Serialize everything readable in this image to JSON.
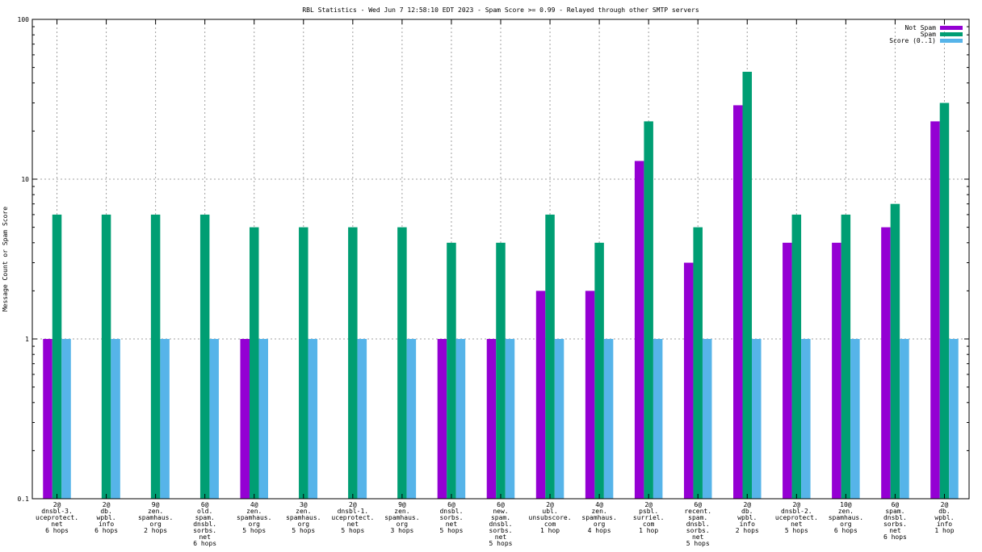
{
  "chart_data": {
    "type": "bar",
    "title": "RBL Statistics - Wed Jun  7 12:58:10 EDT 2023 - Spam Score >= 0.99 - Relayed through other SMTP servers",
    "ylabel": "Message Count or Spam Score",
    "xlabel": "",
    "yscale": "log",
    "ylim": [
      0.1,
      100
    ],
    "yticks": [
      "0.1",
      "1",
      "10",
      "100"
    ],
    "grid": true,
    "legend_position": "top-right",
    "categories": [
      [
        "2@",
        "dnsbl-3.",
        "uceprotect.",
        "net",
        "6 hops"
      ],
      [
        "2@",
        "db.",
        "wpbl.",
        "info",
        "6 hops"
      ],
      [
        "9@",
        "zen.",
        "spamhaus.",
        "org",
        "2 hops"
      ],
      [
        "6@",
        "old.",
        "spam.",
        "dnsbl.",
        "sorbs.",
        "net",
        "6 hops"
      ],
      [
        "4@",
        "zen.",
        "spamhaus.",
        "org",
        "5 hops"
      ],
      [
        "3@",
        "zen.",
        "spamhaus.",
        "org",
        "5 hops"
      ],
      [
        "2@",
        "dnsbl-1.",
        "uceprotect.",
        "net",
        "5 hops"
      ],
      [
        "9@",
        "zen.",
        "spamhaus.",
        "org",
        "3 hops"
      ],
      [
        "6@",
        "dnsbl.",
        "sorbs.",
        "net",
        "5 hops"
      ],
      [
        "6@",
        "new.",
        "spam.",
        "dnsbl.",
        "sorbs.",
        "net",
        "5 hops"
      ],
      [
        "2@",
        "ubl.",
        "unsubscore.",
        "com",
        "1 hop"
      ],
      [
        "4@",
        "zen.",
        "spamhaus.",
        "org",
        "4 hops"
      ],
      [
        "2@",
        "psbl.",
        "surriel.",
        "com",
        "1 hop"
      ],
      [
        "6@",
        "recent.",
        "spam.",
        "dnsbl.",
        "sorbs.",
        "net",
        "5 hops"
      ],
      [
        "2@",
        "db.",
        "wpbl.",
        "info",
        "2 hops"
      ],
      [
        "2@",
        "dnsbl-2.",
        "uceprotect.",
        "net",
        "5 hops"
      ],
      [
        "10@",
        "zen.",
        "spamhaus.",
        "org",
        "6 hops"
      ],
      [
        "6@",
        "spam.",
        "dnsbl.",
        "sorbs.",
        "net",
        "6 hops"
      ],
      [
        "2@",
        "db.",
        "wpbl.",
        "info",
        "1 hop"
      ]
    ],
    "series": [
      {
        "name": "Not Spam",
        "color": "#9400d3",
        "values": [
          1,
          null,
          null,
          null,
          1,
          null,
          null,
          null,
          1,
          1,
          2,
          2,
          13,
          3,
          29,
          4,
          4,
          5,
          23
        ]
      },
      {
        "name": "Spam",
        "color": "#009e73",
        "values": [
          6,
          6,
          6,
          6,
          5,
          5,
          5,
          5,
          4,
          4,
          6,
          4,
          23,
          5,
          47,
          6,
          6,
          7,
          30
        ]
      },
      {
        "name": "Score (0..1)",
        "color": "#56b4e9",
        "values": [
          1,
          1,
          1,
          1,
          1,
          1,
          1,
          1,
          1,
          1,
          1,
          1,
          1,
          1,
          1,
          1,
          1,
          1,
          1
        ]
      }
    ]
  }
}
